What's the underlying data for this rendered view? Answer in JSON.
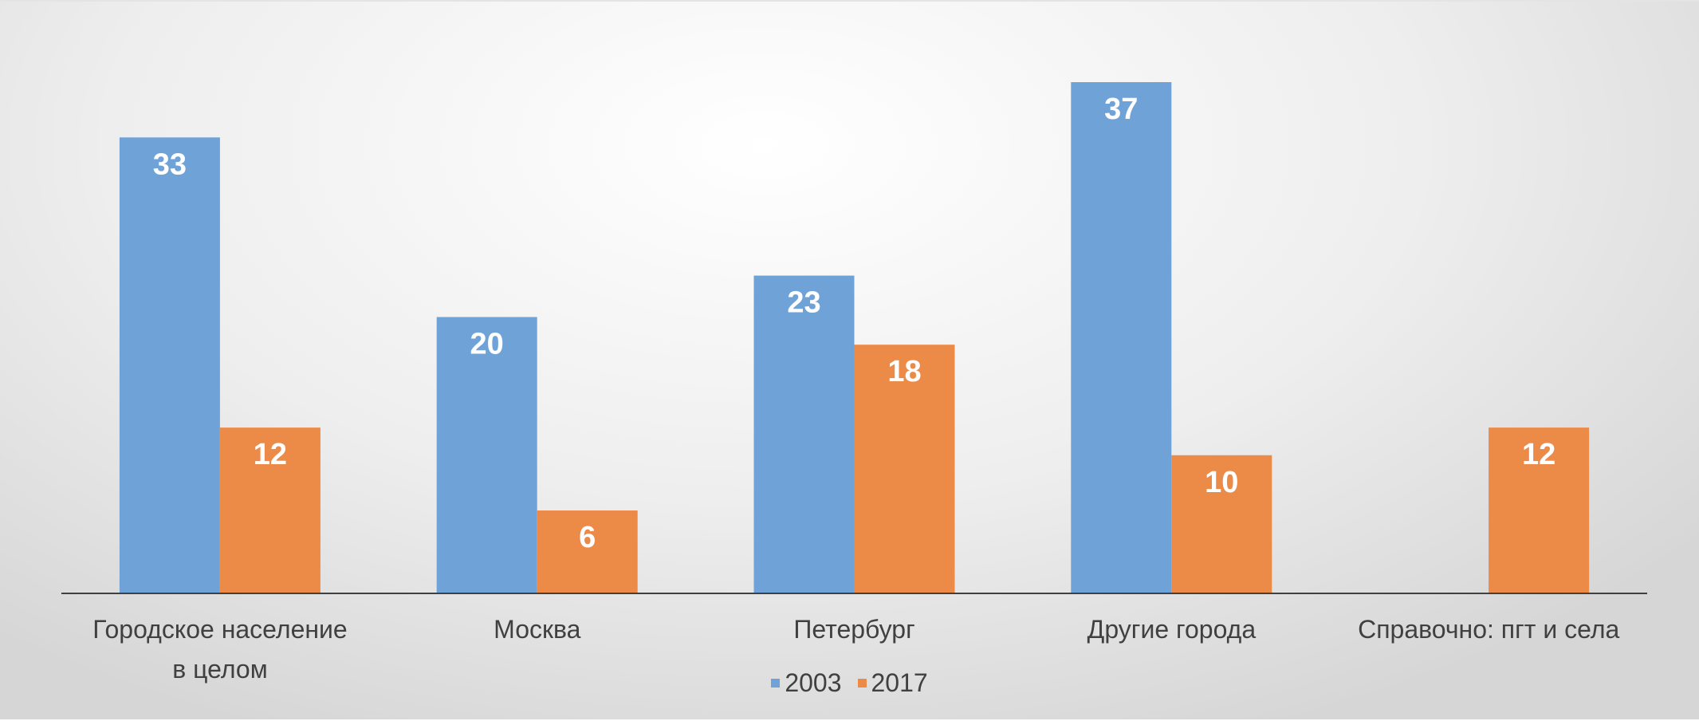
{
  "chart_data": {
    "type": "bar",
    "categories": [
      "Городское население\nв целом",
      "Москва",
      "Петербург",
      "Другие города",
      "Справочно: пгт и села"
    ],
    "series": [
      {
        "name": "2003",
        "color": "#6fa3d8",
        "values": [
          33,
          20,
          23,
          37,
          null
        ]
      },
      {
        "name": "2017",
        "color": "#ec8a48",
        "values": [
          12,
          6,
          18,
          10,
          12
        ]
      }
    ],
    "legend": "bottom"
  }
}
